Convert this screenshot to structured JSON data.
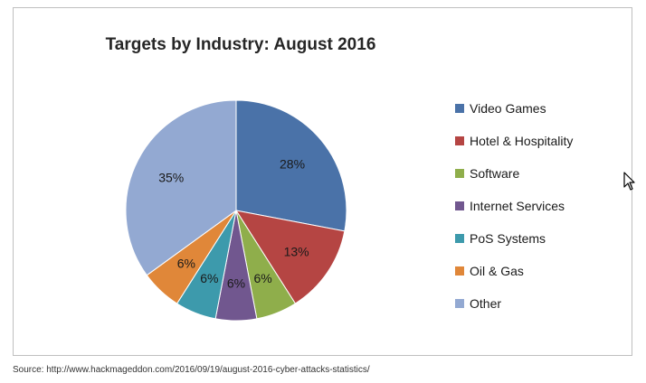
{
  "chart_data": {
    "type": "pie",
    "title": "Targets by Industry: August 2016",
    "categories": [
      "Video Games",
      "Hotel & Hospitality",
      "Software",
      "Internet Services",
      "PoS Systems",
      "Oil & Gas",
      "Other"
    ],
    "values": [
      28,
      13,
      6,
      6,
      6,
      6,
      35
    ],
    "data_labels": [
      "28%",
      "13%",
      "6%",
      "6%",
      "6%",
      "6%",
      "35%"
    ],
    "colors": [
      "#4a72a8",
      "#b54543",
      "#8fae4b",
      "#71578f",
      "#3d9aac",
      "#e08739",
      "#93a9d2"
    ],
    "legend_position": "right"
  },
  "source": "Source: http://www.hackmageddon.com/2016/09/19/august-2016-cyber-attacks-statistics/",
  "icons": {
    "cursor": "mouse-pointer-icon"
  }
}
